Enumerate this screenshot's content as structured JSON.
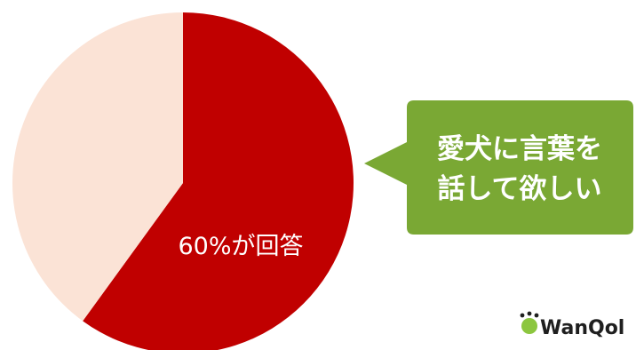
{
  "chart_data": {
    "type": "pie",
    "slices": [
      {
        "label": "60%が回答",
        "value": 60,
        "color": "#c00000"
      },
      {
        "label": "",
        "value": 40,
        "color": "#fbe3d6"
      }
    ],
    "start": "12 o'clock",
    "direction": "clockwise",
    "title": "",
    "legend": "none"
  },
  "callout": {
    "lines": [
      "愛犬に言葉を",
      "話して欲しい"
    ],
    "color": "#7aa834"
  },
  "brand": {
    "logo_text": "WanQol",
    "accent_color": "#8cc63f",
    "text_color": "#1f1f1f"
  }
}
